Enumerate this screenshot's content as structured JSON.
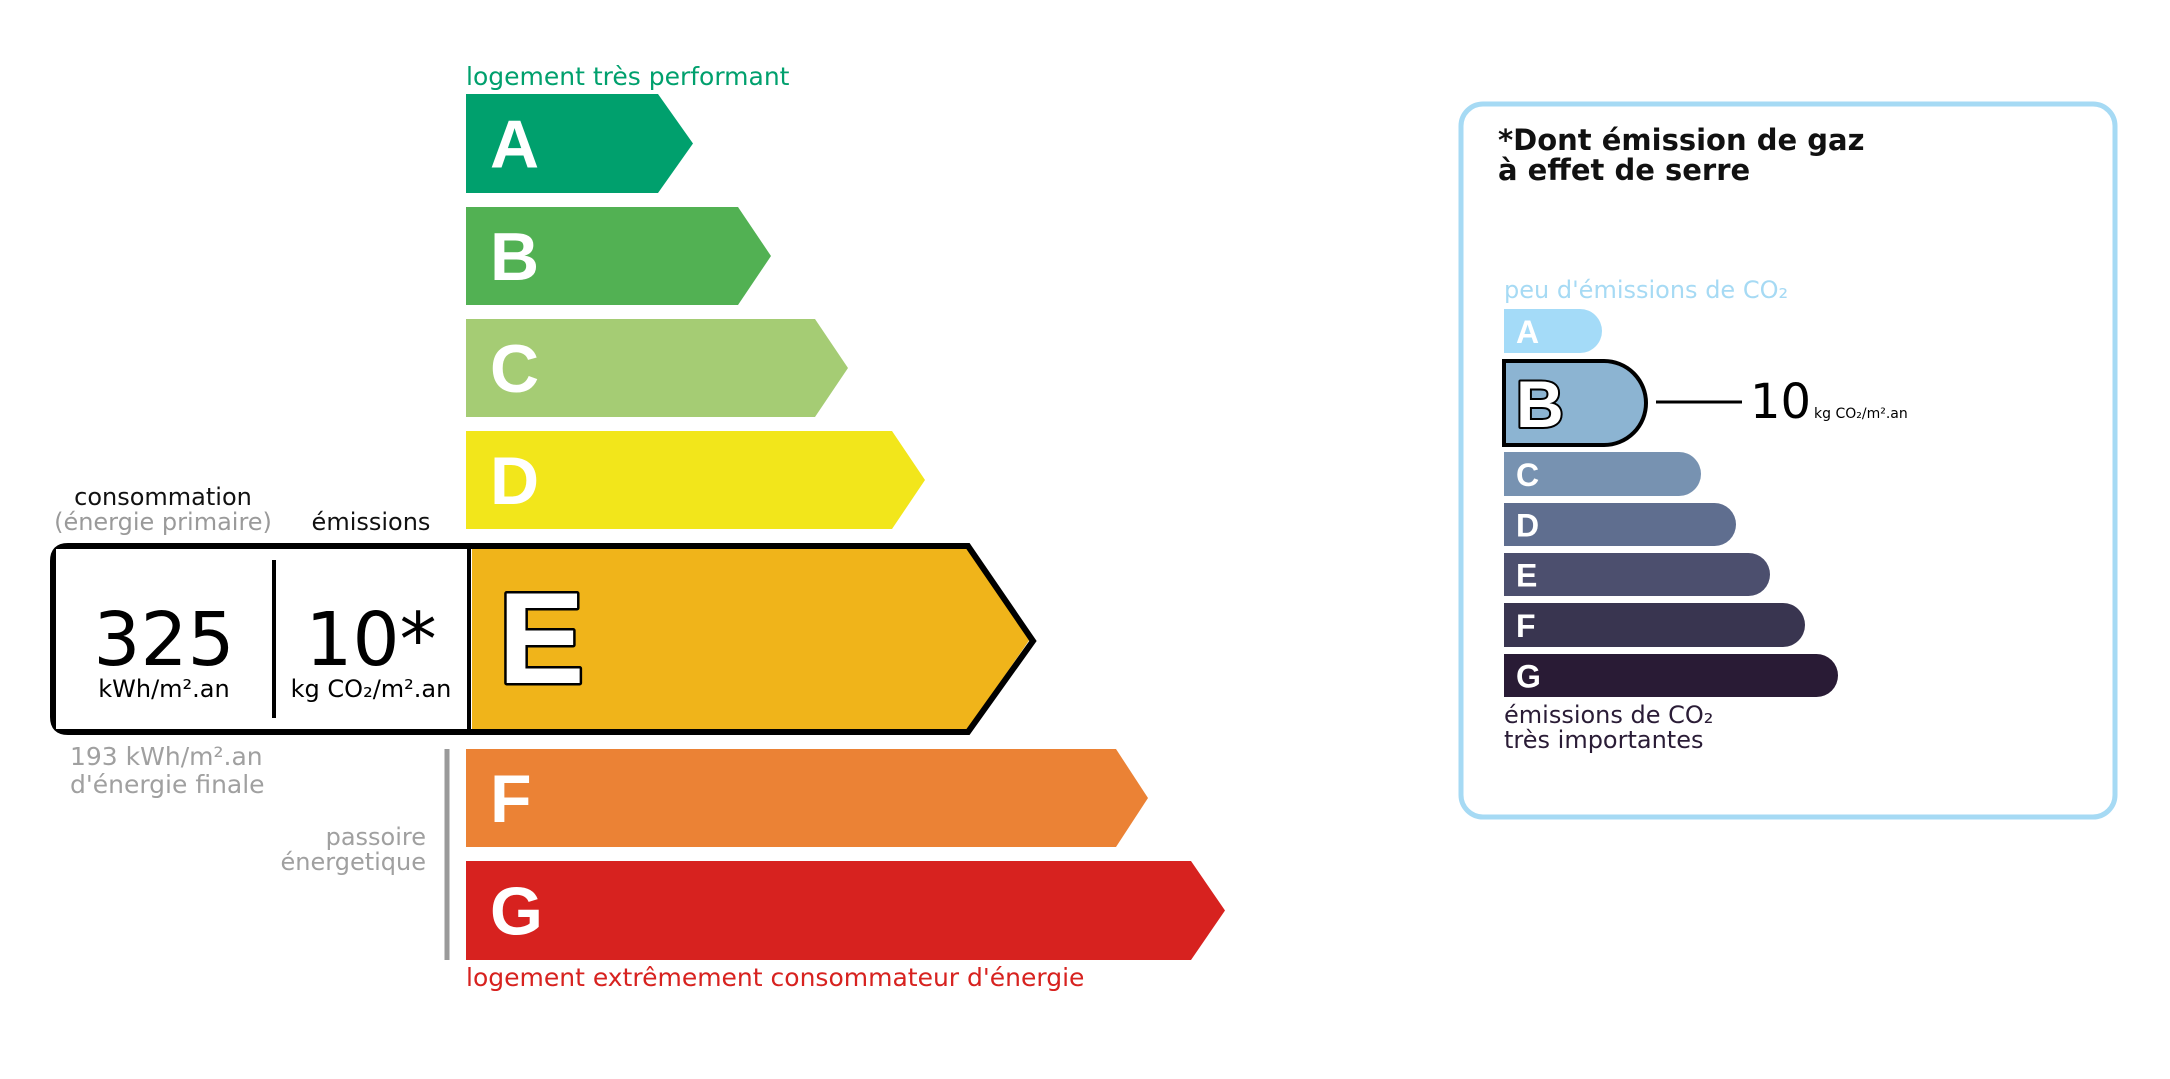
{
  "energy": {
    "top_label": "logement très performant",
    "bottom_label": "logement extrêmement consommateur d'énergie",
    "classes": [
      {
        "letter": "A",
        "color": "#00a06d"
      },
      {
        "letter": "B",
        "color": "#52b153"
      },
      {
        "letter": "C",
        "color": "#a5cc74"
      },
      {
        "letter": "D",
        "color": "#f2e61b"
      },
      {
        "letter": "E",
        "color": "#f0b41a"
      },
      {
        "letter": "F",
        "color": "#eb8235"
      },
      {
        "letter": "G",
        "color": "#d7221f"
      }
    ],
    "current_class": "E",
    "consumption_label": "consommation",
    "consumption_sublabel": "(énergie primaire)",
    "emissions_label": "émissions",
    "consumption_value": "325",
    "consumption_unit": "kWh/m².an",
    "emissions_value": "10*",
    "emissions_unit": "kg CO₂/m².an",
    "final_energy_line1": "193 kWh/m².an",
    "final_energy_line2": "d'énergie finale",
    "passoire_line1": "passoire",
    "passoire_line2": "énergetique"
  },
  "ges": {
    "title_line1": "*Dont émission de gaz",
    "title_line2": "à effet de serre",
    "top_label": "peu d'émissions de CO₂",
    "bottom_label_line1": "émissions de CO₂",
    "bottom_label_line2": "très importantes",
    "classes": [
      {
        "letter": "A",
        "color": "#a4dbf8"
      },
      {
        "letter": "B",
        "color": "#8cb4d2"
      },
      {
        "letter": "C",
        "color": "#7792b1"
      },
      {
        "letter": "D",
        "color": "#5f6e8f"
      },
      {
        "letter": "E",
        "color": "#4c4f6e"
      },
      {
        "letter": "F",
        "color": "#393550"
      },
      {
        "letter": "G",
        "color": "#291b35"
      }
    ],
    "current_class": "B",
    "value": "10",
    "unit": "kg CO₂/m².an",
    "border_color": "#a6daf4"
  }
}
